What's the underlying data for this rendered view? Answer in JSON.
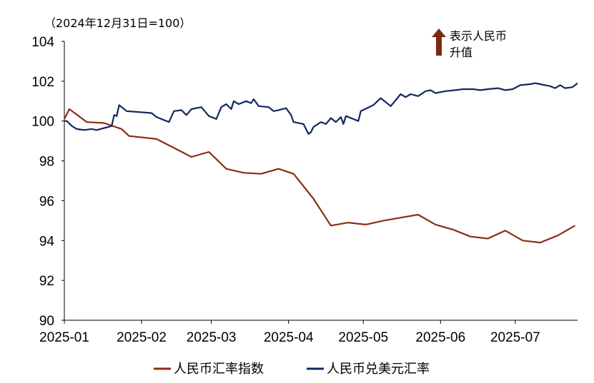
{
  "chart_data": {
    "type": "line",
    "base_note": "（2024年12月31日=100）",
    "arrow_note": [
      "表示人民币",
      "升值"
    ],
    "colors": {
      "arrow": "#7a2a12"
    },
    "ylim": [
      90,
      104
    ],
    "yticks": [
      90,
      92,
      94,
      96,
      98,
      100,
      102,
      104
    ],
    "xlim": [
      "2025-01-01",
      "2025-07-26"
    ],
    "xticks": [
      {
        "label": "2025-01",
        "date": "2025-01-01"
      },
      {
        "label": "2025-02",
        "date": "2025-02-01"
      },
      {
        "label": "2025-03",
        "date": "2025-03-01"
      },
      {
        "label": "2025-04",
        "date": "2025-04-01"
      },
      {
        "label": "2025-05",
        "date": "2025-05-01"
      },
      {
        "label": "2025-06",
        "date": "2025-06-01"
      },
      {
        "label": "2025-07",
        "date": "2025-07-01"
      }
    ],
    "grid": false,
    "legend_position": "bottom",
    "series": [
      {
        "name": "人民币汇率指数",
        "color": "#8b2d14",
        "points": [
          [
            "2025-01-01",
            100.1
          ],
          [
            "2025-01-03",
            100.6
          ],
          [
            "2025-01-10",
            99.95
          ],
          [
            "2025-01-17",
            99.9
          ],
          [
            "2025-01-24",
            99.6
          ],
          [
            "2025-01-27",
            99.25
          ],
          [
            "2025-02-07",
            99.1
          ],
          [
            "2025-02-14",
            98.65
          ],
          [
            "2025-02-21",
            98.2
          ],
          [
            "2025-02-28",
            98.45
          ],
          [
            "2025-03-07",
            97.6
          ],
          [
            "2025-03-14",
            97.4
          ],
          [
            "2025-03-21",
            97.35
          ],
          [
            "2025-03-28",
            97.6
          ],
          [
            "2025-04-03",
            97.35
          ],
          [
            "2025-04-11",
            96.1
          ],
          [
            "2025-04-18",
            94.75
          ],
          [
            "2025-04-25",
            94.9
          ],
          [
            "2025-05-02",
            94.8
          ],
          [
            "2025-05-09",
            95.0
          ],
          [
            "2025-05-16",
            95.15
          ],
          [
            "2025-05-23",
            95.3
          ],
          [
            "2025-05-30",
            94.8
          ],
          [
            "2025-06-06",
            94.55
          ],
          [
            "2025-06-13",
            94.2
          ],
          [
            "2025-06-20",
            94.1
          ],
          [
            "2025-06-27",
            94.5
          ],
          [
            "2025-07-04",
            94.0
          ],
          [
            "2025-07-11",
            93.9
          ],
          [
            "2025-07-18",
            94.25
          ],
          [
            "2025-07-25",
            94.75
          ]
        ]
      },
      {
        "name": "人民币兑美元汇率",
        "color": "#14285f",
        "points": [
          [
            "2025-01-01",
            100.0
          ],
          [
            "2025-01-02",
            100.0
          ],
          [
            "2025-01-04",
            99.75
          ],
          [
            "2025-01-06",
            99.6
          ],
          [
            "2025-01-09",
            99.55
          ],
          [
            "2025-01-12",
            99.6
          ],
          [
            "2025-01-14",
            99.55
          ],
          [
            "2025-01-17",
            99.65
          ],
          [
            "2025-01-20",
            99.75
          ],
          [
            "2025-01-21",
            100.3
          ],
          [
            "2025-01-22",
            100.25
          ],
          [
            "2025-01-23",
            100.8
          ],
          [
            "2025-01-26",
            100.5
          ],
          [
            "2025-02-05",
            100.4
          ],
          [
            "2025-02-07",
            100.2
          ],
          [
            "2025-02-10",
            100.05
          ],
          [
            "2025-02-12",
            99.95
          ],
          [
            "2025-02-14",
            100.5
          ],
          [
            "2025-02-17",
            100.55
          ],
          [
            "2025-02-19",
            100.3
          ],
          [
            "2025-02-21",
            100.6
          ],
          [
            "2025-02-25",
            100.7
          ],
          [
            "2025-02-26",
            100.55
          ],
          [
            "2025-02-28",
            100.25
          ],
          [
            "2025-03-03",
            100.1
          ],
          [
            "2025-03-05",
            100.7
          ],
          [
            "2025-03-07",
            100.85
          ],
          [
            "2025-03-09",
            100.6
          ],
          [
            "2025-03-10",
            101.0
          ],
          [
            "2025-03-12",
            100.85
          ],
          [
            "2025-03-15",
            101.0
          ],
          [
            "2025-03-17",
            100.9
          ],
          [
            "2025-03-18",
            101.1
          ],
          [
            "2025-03-20",
            100.75
          ],
          [
            "2025-03-24",
            100.7
          ],
          [
            "2025-03-26",
            100.5
          ],
          [
            "2025-03-28",
            100.55
          ],
          [
            "2025-03-31",
            100.65
          ],
          [
            "2025-04-02",
            100.3
          ],
          [
            "2025-04-03",
            99.95
          ],
          [
            "2025-04-07",
            99.85
          ],
          [
            "2025-04-09",
            99.35
          ],
          [
            "2025-04-10",
            99.45
          ],
          [
            "2025-04-11",
            99.7
          ],
          [
            "2025-04-14",
            99.95
          ],
          [
            "2025-04-16",
            99.85
          ],
          [
            "2025-04-18",
            100.15
          ],
          [
            "2025-04-20",
            99.95
          ],
          [
            "2025-04-22",
            100.2
          ],
          [
            "2025-04-23",
            99.85
          ],
          [
            "2025-04-24",
            100.25
          ],
          [
            "2025-04-27",
            100.1
          ],
          [
            "2025-04-29",
            100.0
          ],
          [
            "2025-04-30",
            100.5
          ],
          [
            "2025-05-05",
            100.8
          ],
          [
            "2025-05-08",
            101.15
          ],
          [
            "2025-05-12",
            100.75
          ],
          [
            "2025-05-16",
            101.35
          ],
          [
            "2025-05-18",
            101.2
          ],
          [
            "2025-05-20",
            101.35
          ],
          [
            "2025-05-23",
            101.25
          ],
          [
            "2025-05-26",
            101.5
          ],
          [
            "2025-05-28",
            101.55
          ],
          [
            "2025-05-30",
            101.4
          ],
          [
            "2025-06-03",
            101.5
          ],
          [
            "2025-06-07",
            101.55
          ],
          [
            "2025-06-10",
            101.6
          ],
          [
            "2025-06-14",
            101.6
          ],
          [
            "2025-06-17",
            101.55
          ],
          [
            "2025-06-20",
            101.6
          ],
          [
            "2025-06-24",
            101.65
          ],
          [
            "2025-06-27",
            101.55
          ],
          [
            "2025-06-30",
            101.6
          ],
          [
            "2025-07-03",
            101.8
          ],
          [
            "2025-07-07",
            101.85
          ],
          [
            "2025-07-09",
            101.9
          ],
          [
            "2025-07-11",
            101.85
          ],
          [
            "2025-07-15",
            101.75
          ],
          [
            "2025-07-17",
            101.65
          ],
          [
            "2025-07-19",
            101.8
          ],
          [
            "2025-07-21",
            101.65
          ],
          [
            "2025-07-24",
            101.7
          ],
          [
            "2025-07-26",
            101.9
          ]
        ]
      }
    ]
  }
}
